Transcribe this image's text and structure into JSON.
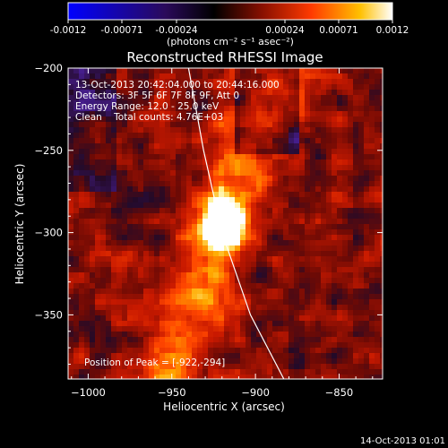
{
  "colorbar": {
    "tick_labels": [
      "-0.0012",
      "-0.00071",
      "-0.00024",
      "0.00024",
      "0.00071",
      "0.0012"
    ],
    "unit_label": "(photons cm⁻² s⁻¹ asec⁻²)",
    "range": [
      -0.0012,
      0.0012
    ]
  },
  "chart_data": {
    "type": "heatmap",
    "title": "Reconstructed RHESSI Image",
    "xlabel": "Heliocentric X (arcsec)",
    "ylabel": "Heliocentric Y (arcsec)",
    "xlim": [
      -1012,
      -824
    ],
    "ylim": [
      -389,
      -200
    ],
    "x_ticks": [
      -1000,
      -950,
      -900,
      -850
    ],
    "y_ticks": [
      -200,
      -250,
      -300,
      -350
    ],
    "x_tick_labels": [
      "−1000",
      "−950",
      "−900",
      "−850"
    ],
    "y_tick_labels": [
      "−200",
      "−250",
      "−300",
      "−350"
    ],
    "peak": {
      "x": -922,
      "y": -294
    },
    "limb_curve": [
      [
        -940,
        -200
      ],
      [
        -931,
        -250
      ],
      [
        -920,
        -300
      ],
      [
        -903,
        -350
      ],
      [
        -883,
        -389
      ]
    ],
    "info_lines": [
      "13-Oct-2013 20:42:04.000 to 20:44:16.000",
      "Detectors: 3F 5F 6F 7F 8F 9F, Att 0",
      "Energy Range: 12.0 - 25.0 keV",
      "Clean    Total counts: 4.76E+03"
    ],
    "peak_label": "Position of Peak = [-922,-294]"
  },
  "footer": {
    "timestamp": "14-Oct-2013 01:01"
  }
}
